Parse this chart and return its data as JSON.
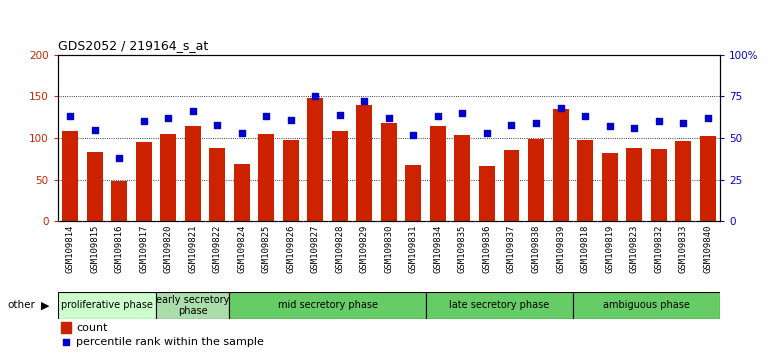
{
  "title": "GDS2052 / 219164_s_at",
  "samples": [
    "GSM109814",
    "GSM109815",
    "GSM109816",
    "GSM109817",
    "GSM109820",
    "GSM109821",
    "GSM109822",
    "GSM109824",
    "GSM109825",
    "GSM109826",
    "GSM109827",
    "GSM109828",
    "GSM109829",
    "GSM109830",
    "GSM109831",
    "GSM109834",
    "GSM109835",
    "GSM109836",
    "GSM109837",
    "GSM109838",
    "GSM109839",
    "GSM109818",
    "GSM109819",
    "GSM109823",
    "GSM109832",
    "GSM109833",
    "GSM109840"
  ],
  "counts": [
    109,
    83,
    48,
    95,
    105,
    114,
    88,
    69,
    105,
    98,
    148,
    108,
    140,
    118,
    68,
    115,
    104,
    67,
    86,
    99,
    135,
    98,
    82,
    88,
    87,
    96,
    103
  ],
  "percentiles": [
    63,
    55,
    38,
    60,
    62,
    66,
    58,
    53,
    63,
    61,
    75,
    64,
    72,
    62,
    52,
    63,
    65,
    53,
    58,
    59,
    68,
    63,
    57,
    56,
    60,
    59,
    62
  ],
  "bar_color": "#cc2200",
  "dot_color": "#0000cc",
  "plot_bg": "#ffffff",
  "tick_bg": "#d8d8d8",
  "ylim_left": [
    0,
    200
  ],
  "ylim_right": [
    0,
    100
  ],
  "yticks_left": [
    0,
    50,
    100,
    150,
    200
  ],
  "yticks_right": [
    0,
    25,
    50,
    75,
    100
  ],
  "ytick_labels_right": [
    "0",
    "25",
    "50",
    "75",
    "100%"
  ],
  "grid_vals": [
    50,
    100,
    150
  ],
  "phase_data": [
    {
      "label": "proliferative phase",
      "start": 0,
      "end": 4,
      "color": "#ccffcc"
    },
    {
      "label": "early secretory\nphase",
      "start": 4,
      "end": 7,
      "color": "#aaddaa"
    },
    {
      "label": "mid secretory phase",
      "start": 7,
      "end": 15,
      "color": "#66cc66"
    },
    {
      "label": "late secretory phase",
      "start": 15,
      "end": 21,
      "color": "#66cc66"
    },
    {
      "label": "ambiguous phase",
      "start": 21,
      "end": 27,
      "color": "#66cc66"
    }
  ]
}
